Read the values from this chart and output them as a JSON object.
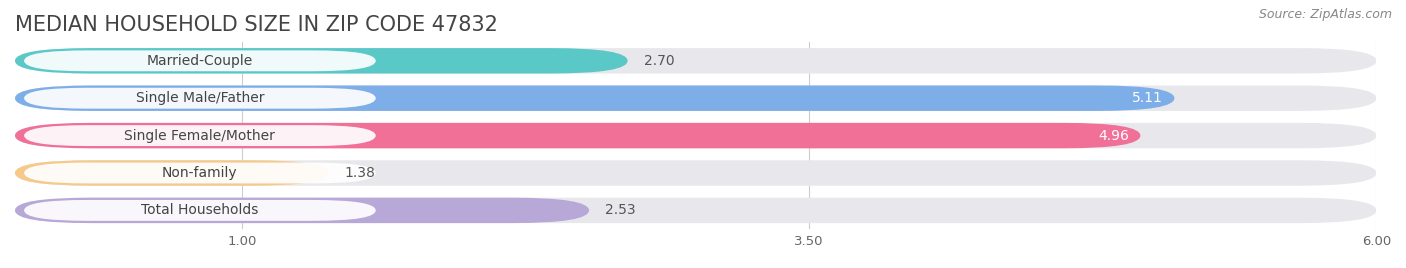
{
  "title": "MEDIAN HOUSEHOLD SIZE IN ZIP CODE 47832",
  "source": "Source: ZipAtlas.com",
  "categories": [
    "Married-Couple",
    "Single Male/Father",
    "Single Female/Mother",
    "Non-family",
    "Total Households"
  ],
  "values": [
    2.7,
    5.11,
    4.96,
    1.38,
    2.53
  ],
  "bar_colors": [
    "#5bc8c8",
    "#7eaee8",
    "#f07098",
    "#f5c98a",
    "#b8a8d8"
  ],
  "bar_labels": [
    "2.70",
    "5.11",
    "4.96",
    "1.38",
    "2.53"
  ],
  "label_inside": [
    false,
    true,
    true,
    false,
    false
  ],
  "label_colors_inside": [
    "#555555",
    "#ffffff",
    "#ffffff",
    "#555555",
    "#555555"
  ],
  "xlim": [
    0,
    6.0
  ],
  "xticks": [
    1.0,
    3.5,
    6.0
  ],
  "xtick_labels": [
    "1.00",
    "3.50",
    "6.00"
  ],
  "background_color": "#ffffff",
  "bar_bg_color": "#e8e8ec",
  "title_fontsize": 15,
  "source_fontsize": 9,
  "label_fontsize": 10,
  "cat_fontsize": 10
}
